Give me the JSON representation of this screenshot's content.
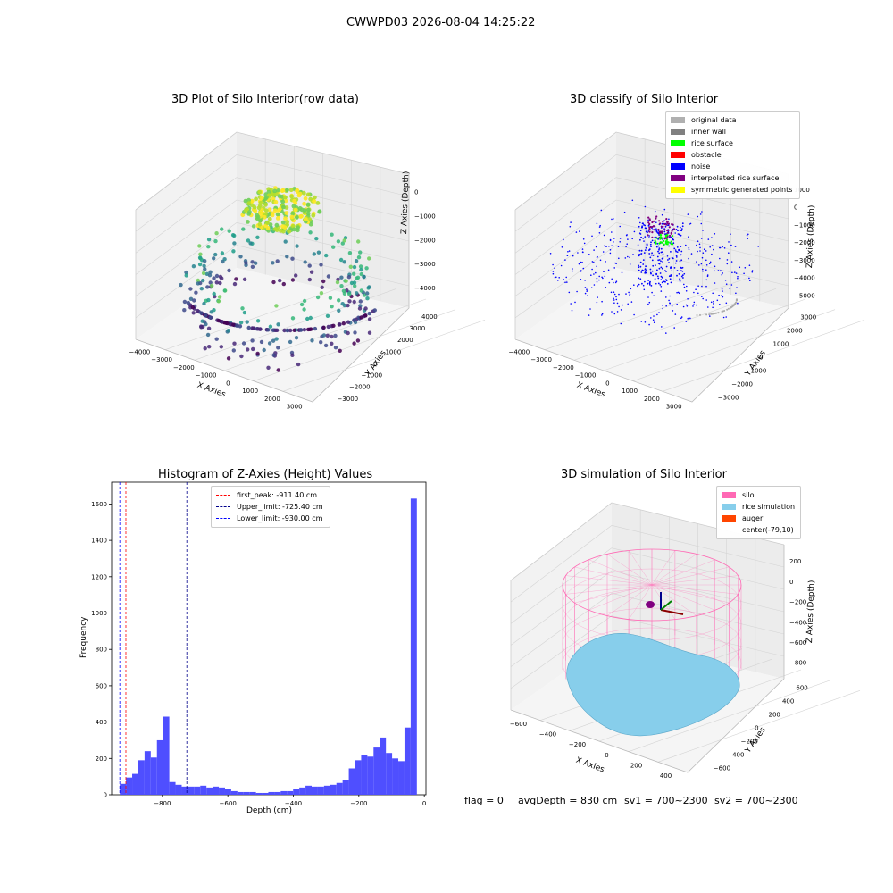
{
  "suptitle": "CWWPD03 2026-08-04 14:25:22",
  "panels": {
    "raw": {
      "title": "3D Plot of Silo Interior(row data)",
      "xlabel": "X Axies",
      "ylabel": "Y Axies",
      "zlabel": "Z Axies (Depth)",
      "xticks": [
        "−4000",
        "−3000",
        "−2000",
        "−1000",
        "0",
        "1000",
        "2000",
        "3000"
      ],
      "yticks": [
        "4000",
        "3000",
        "2000",
        "1000",
        "0",
        "−1000",
        "−2000",
        "−3000"
      ],
      "zticks": [
        "0",
        "−1000",
        "−2000",
        "−3000",
        "−4000"
      ]
    },
    "classify": {
      "title": "3D classify of Silo Interior",
      "xlabel": "X Axies",
      "ylabel": "Y Axies",
      "zlabel": "Z Axies (Depth)",
      "xticks": [
        "−4000",
        "−3000",
        "−2000",
        "−1000",
        "0",
        "1000",
        "2000",
        "3000"
      ],
      "yticks": [
        "3000",
        "2000",
        "1000",
        "0",
        "−1000",
        "−2000",
        "−3000"
      ],
      "zticks": [
        "1000",
        "0",
        "−1000",
        "−2000",
        "−3000",
        "−4000",
        "−5000"
      ],
      "legend": [
        {
          "label": "original data",
          "color": "#b0b0b0"
        },
        {
          "label": "inner wall",
          "color": "#808080"
        },
        {
          "label": "rice surface",
          "color": "#00ff00"
        },
        {
          "label": "obstacle",
          "color": "#ff0000"
        },
        {
          "label": "noise",
          "color": "#0000ff"
        },
        {
          "label": "interpolated rice surface",
          "color": "#800080"
        },
        {
          "label": "symmetric generated points",
          "color": "#ffff00"
        }
      ]
    },
    "simulation": {
      "title": "3D simulation of Silo Interior",
      "xlabel": "X Axies",
      "ylabel": "Y Axies",
      "zlabel": "Z Axies (Depth)",
      "xticks": [
        "−600",
        "−400",
        "−200",
        "0",
        "200",
        "400"
      ],
      "yticks": [
        "600",
        "400",
        "200",
        "0",
        "−200",
        "−400",
        "−600"
      ],
      "zticks": [
        "200",
        "0",
        "−200",
        "−400",
        "−600",
        "−800"
      ],
      "legend": [
        {
          "label": "silo",
          "color": "#ff69b4"
        },
        {
          "label": "rice simulation",
          "color": "#87ceeb"
        },
        {
          "label": "auger",
          "color": "#ff4500"
        },
        {
          "label": "center(-79,10)",
          "color": ""
        }
      ]
    }
  },
  "chart_data": {
    "type": "bar",
    "title": "Histogram of Z-Axies (Height) Values",
    "xlabel": "Depth (cm)",
    "ylabel": "Frequency",
    "xlim": [
      -955,
      5
    ],
    "ylim": [
      0,
      1720
    ],
    "xticks": [
      -800,
      -600,
      -400,
      -200,
      0
    ],
    "xtick_labels": [
      "−800",
      "−600",
      "−400",
      "−200",
      "0"
    ],
    "yticks": [
      0,
      200,
      400,
      600,
      800,
      1000,
      1200,
      1400,
      1600
    ],
    "bin_width": 18.9,
    "bin_start": -930,
    "values": [
      60,
      95,
      115,
      190,
      240,
      205,
      300,
      430,
      70,
      55,
      45,
      45,
      45,
      50,
      40,
      45,
      40,
      30,
      20,
      15,
      15,
      15,
      10,
      10,
      15,
      15,
      20,
      20,
      30,
      40,
      50,
      45,
      45,
      50,
      55,
      65,
      80,
      145,
      190,
      220,
      210,
      260,
      315,
      230,
      200,
      185,
      370,
      1630
    ],
    "bar_color": "#4b4bff",
    "vlines": [
      {
        "label": "first_peak: -911.40 cm",
        "x": -911.4,
        "color": "#ff0000"
      },
      {
        "label": "Upper_limit: -725.40 cm",
        "x": -725.4,
        "color": "#00008b"
      },
      {
        "label": "Lower_limit: -930.00 cm",
        "x": -930.0,
        "color": "#0000ff"
      }
    ]
  },
  "footer": {
    "flag": "flag = 0",
    "avg": "avgDepth = 830 cm",
    "sv1": "sv1 = 700~2300",
    "sv2": "sv2 = 700~2300"
  }
}
